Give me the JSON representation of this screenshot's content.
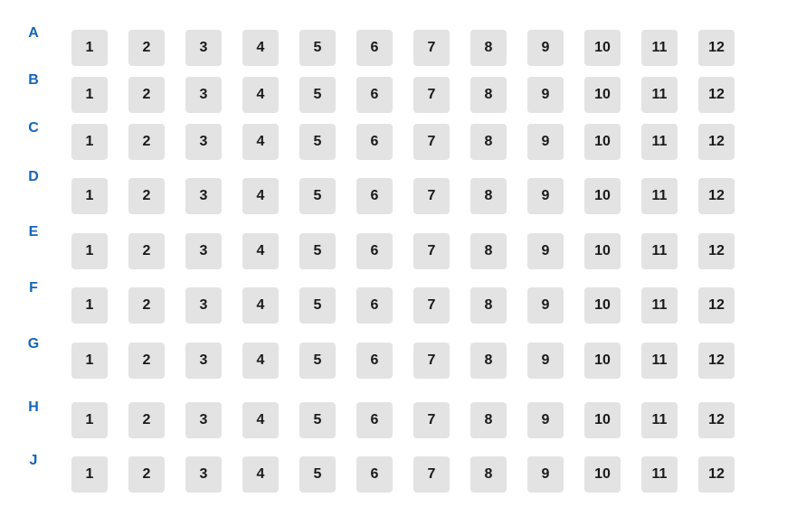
{
  "seat_map": {
    "colors": {
      "row_label": "#1466b8",
      "seat_background": "#e3e3e3",
      "seat_text": "#1a1a1a",
      "page_background": "#ffffff"
    },
    "rows": [
      {
        "label": "A",
        "seats": [
          "1",
          "2",
          "3",
          "4",
          "5",
          "6",
          "7",
          "8",
          "9",
          "10",
          "11",
          "12"
        ]
      },
      {
        "label": "B",
        "seats": [
          "1",
          "2",
          "3",
          "4",
          "5",
          "6",
          "7",
          "8",
          "9",
          "10",
          "11",
          "12"
        ]
      },
      {
        "label": "C",
        "seats": [
          "1",
          "2",
          "3",
          "4",
          "5",
          "6",
          "7",
          "8",
          "9",
          "10",
          "11",
          "12"
        ]
      },
      {
        "label": "D",
        "seats": [
          "1",
          "2",
          "3",
          "4",
          "5",
          "6",
          "7",
          "8",
          "9",
          "10",
          "11",
          "12"
        ]
      },
      {
        "label": "E",
        "seats": [
          "1",
          "2",
          "3",
          "4",
          "5",
          "6",
          "7",
          "8",
          "9",
          "10",
          "11",
          "12"
        ]
      },
      {
        "label": "F",
        "seats": [
          "1",
          "2",
          "3",
          "4",
          "5",
          "6",
          "7",
          "8",
          "9",
          "10",
          "11",
          "12"
        ]
      },
      {
        "label": "G",
        "seats": [
          "1",
          "2",
          "3",
          "4",
          "5",
          "6",
          "7",
          "8",
          "9",
          "10",
          "11",
          "12"
        ]
      },
      {
        "label": "H",
        "seats": [
          "1",
          "2",
          "3",
          "4",
          "5",
          "6",
          "7",
          "8",
          "9",
          "10",
          "11",
          "12"
        ]
      },
      {
        "label": "J",
        "seats": [
          "1",
          "2",
          "3",
          "4",
          "5",
          "6",
          "7",
          "8",
          "9",
          "10",
          "11",
          "12"
        ]
      }
    ]
  }
}
